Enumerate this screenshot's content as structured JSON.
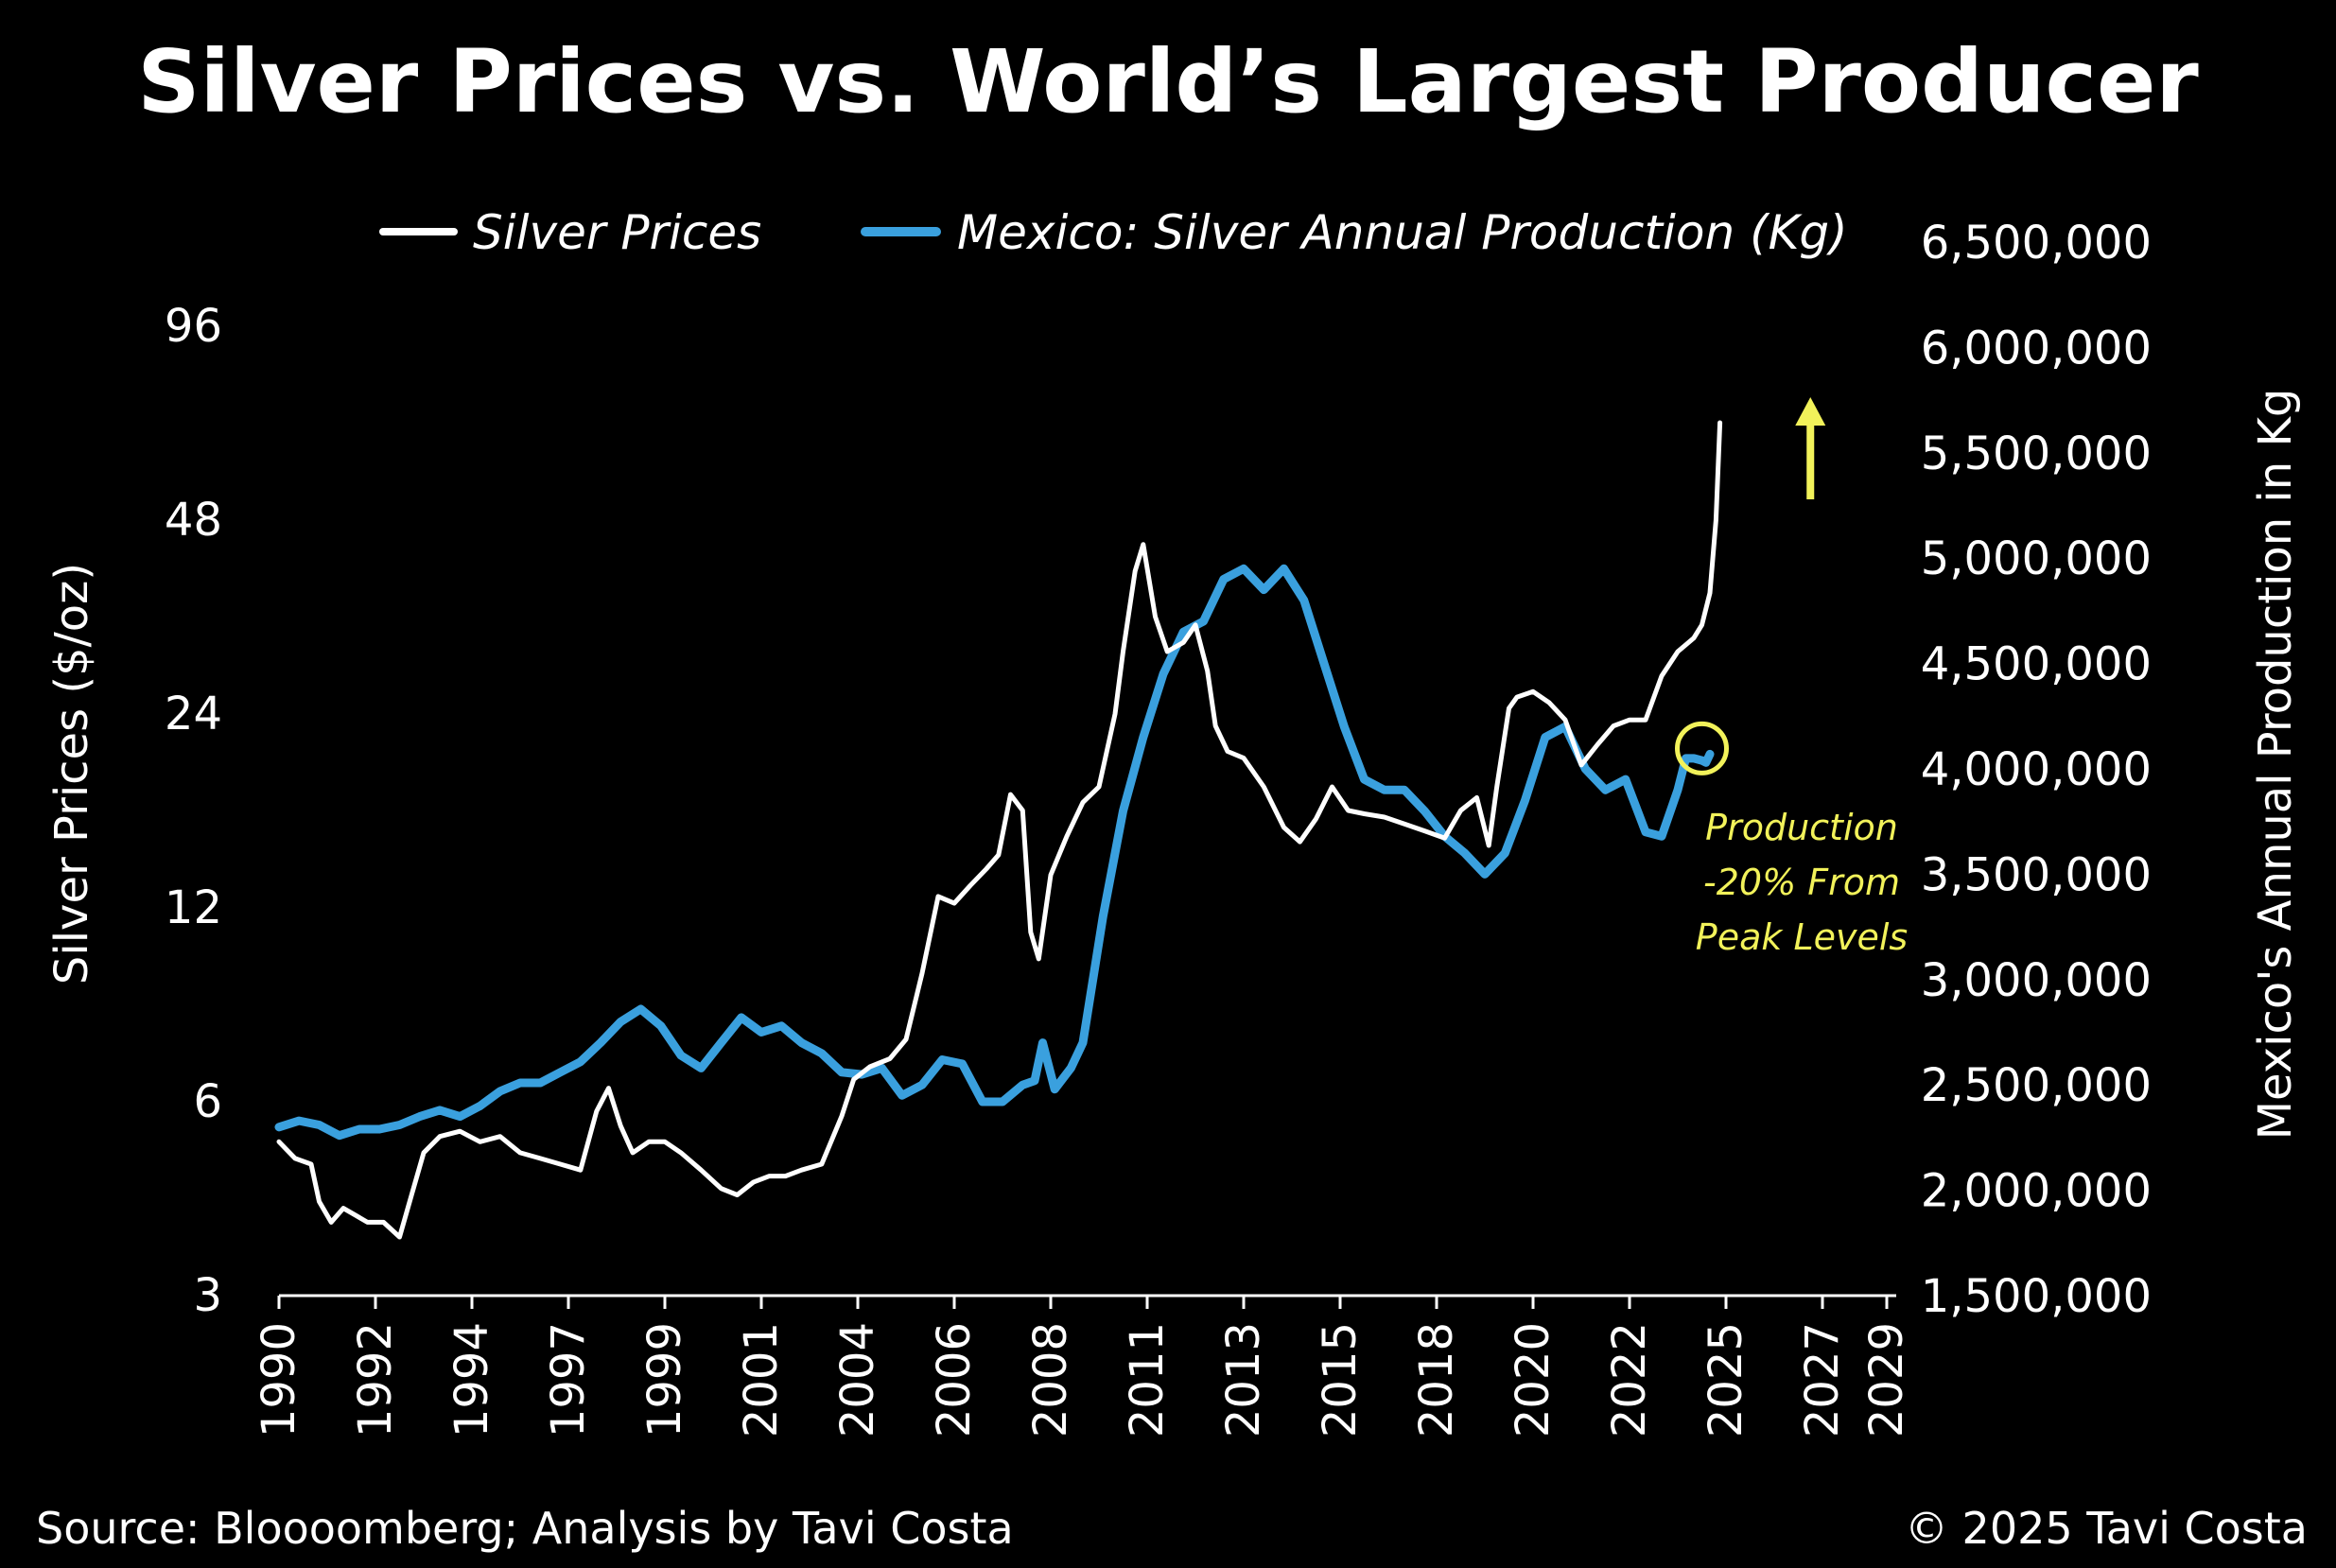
{
  "chart_data": {
    "type": "line",
    "title": "Silver Prices vs. World’s Largest Producer",
    "legend_position": "top",
    "grid": false,
    "x_axis": {
      "range": [
        1990,
        2030
      ],
      "tick_labels": [
        "1990",
        "1992",
        "1994",
        "1997",
        "1999",
        "2001",
        "2004",
        "2006",
        "2008",
        "2011",
        "2013",
        "2015",
        "2018",
        "2020",
        "2022",
        "2025",
        "2027",
        "2029"
      ],
      "tick_values": [
        1990,
        1992.4,
        1994.8,
        1997.2,
        1999.6,
        2002,
        2004.4,
        2006.8,
        2009.2,
        2011.6,
        2014,
        2016.4,
        2018.8,
        2021.2,
        2023.6,
        2026,
        2028.4,
        2030
      ]
    },
    "y_left": {
      "label": "Silver Prices ($/oz)",
      "scale": "log2",
      "range": [
        3,
        96
      ],
      "ticks": [
        96,
        48,
        24,
        12,
        6,
        3
      ]
    },
    "y_right": {
      "label": "Mexico's Annual Production in Kg",
      "scale": "linear",
      "range": [
        1500000,
        6500000
      ],
      "ticks": [
        {
          "v": 6500000,
          "label": "6,500,000"
        },
        {
          "v": 6000000,
          "label": "6,000,000"
        },
        {
          "v": 5500000,
          "label": "5,500,000"
        },
        {
          "v": 5000000,
          "label": "5,000,000"
        },
        {
          "v": 4500000,
          "label": "4,500,000"
        },
        {
          "v": 4000000,
          "label": "4,000,000"
        },
        {
          "v": 3500000,
          "label": "3,500,000"
        },
        {
          "v": 3000000,
          "label": "3,000,000"
        },
        {
          "v": 2500000,
          "label": "2,500,000"
        },
        {
          "v": 2000000,
          "label": "2,000,000"
        },
        {
          "v": 1500000,
          "label": "1,500,000"
        }
      ]
    },
    "series": [
      {
        "name": "Silver Prices",
        "axis": "left",
        "color": "#ffffff",
        "x": [
          1990,
          1990.4,
          1990.8,
          1991.0,
          1991.3,
          1991.6,
          1991.9,
          1992.2,
          1992.6,
          1993.0,
          1993.3,
          1993.6,
          1994.0,
          1994.5,
          1995.0,
          1995.5,
          1996.0,
          1996.5,
          1997.0,
          1997.5,
          1997.9,
          1998.2,
          1998.5,
          1998.8,
          1999.2,
          1999.6,
          2000.0,
          2000.5,
          2001.0,
          2001.4,
          2001.8,
          2002.2,
          2002.6,
          2003.0,
          2003.5,
          2004.0,
          2004.3,
          2004.7,
          2005.2,
          2005.6,
          2006.0,
          2006.4,
          2006.8,
          2007.2,
          2007.6,
          2007.9,
          2008.2,
          2008.5,
          2008.7,
          2008.9,
          2009.2,
          2009.6,
          2010.0,
          2010.4,
          2010.8,
          2011.0,
          2011.3,
          2011.5,
          2011.8,
          2012.1,
          2012.5,
          2012.8,
          2013.1,
          2013.3,
          2013.6,
          2014.0,
          2014.5,
          2015.0,
          2015.4,
          2015.8,
          2016.2,
          2016.6,
          2017.0,
          2017.5,
          2018.0,
          2018.5,
          2019.0,
          2019.4,
          2019.8,
          2020.1,
          2020.3,
          2020.6,
          2020.8,
          2021.2,
          2021.6,
          2022.0,
          2022.4,
          2022.8,
          2023.2,
          2023.6,
          2024.0,
          2024.4,
          2024.8,
          2025.2,
          2025.4,
          2025.6,
          2025.75,
          2025.85
        ],
        "values": [
          5.2,
          4.9,
          4.8,
          4.2,
          3.9,
          4.1,
          4.0,
          3.9,
          3.9,
          3.7,
          4.3,
          5.0,
          5.3,
          5.4,
          5.2,
          5.3,
          5.0,
          4.9,
          4.8,
          4.7,
          5.8,
          6.3,
          5.5,
          5.0,
          5.2,
          5.2,
          5.0,
          4.7,
          4.4,
          4.3,
          4.5,
          4.6,
          4.6,
          4.7,
          4.8,
          5.7,
          6.5,
          6.8,
          7.0,
          7.5,
          9.5,
          12.5,
          12.2,
          13.0,
          13.8,
          14.5,
          18.0,
          17.0,
          11.0,
          10.0,
          13.5,
          15.5,
          17.5,
          18.5,
          24.0,
          30.0,
          40.0,
          44.0,
          34.0,
          30.0,
          31.0,
          33.0,
          28.0,
          23.0,
          21.0,
          20.5,
          18.5,
          16.0,
          15.2,
          16.5,
          18.5,
          17.0,
          16.8,
          16.6,
          16.2,
          15.8,
          15.4,
          17.0,
          17.8,
          15.0,
          18.5,
          24.5,
          25.5,
          26.0,
          25.0,
          23.5,
          20.0,
          21.5,
          23.0,
          23.5,
          23.5,
          27.5,
          30.0,
          31.5,
          33.0,
          37.0,
          48.0,
          68.0
        ]
      },
      {
        "name": "Mexico: Silver Annual Production (Kg)",
        "axis": "right",
        "color": "#3aa0de",
        "x": [
          1990,
          1990.5,
          1991.0,
          1991.5,
          1992.0,
          1992.5,
          1993.0,
          1993.5,
          1994.0,
          1994.5,
          1995.0,
          1995.5,
          1996.0,
          1996.5,
          1997.0,
          1997.5,
          1998.0,
          1998.5,
          1999.0,
          1999.5,
          2000.0,
          2000.5,
          2001.0,
          2001.5,
          2002.0,
          2002.5,
          2003.0,
          2003.5,
          2004.0,
          2004.5,
          2005.0,
          2005.5,
          2006.0,
          2006.5,
          2007.0,
          2007.5,
          2008.0,
          2008.5,
          2008.8,
          2009.0,
          2009.3,
          2009.7,
          2010.0,
          2010.5,
          2011.0,
          2011.5,
          2012.0,
          2012.5,
          2013.0,
          2013.5,
          2014.0,
          2014.5,
          2015.0,
          2015.5,
          2016.0,
          2016.5,
          2017.0,
          2017.5,
          2018.0,
          2018.5,
          2019.0,
          2019.5,
          2020.0,
          2020.5,
          2021.0,
          2021.5,
          2022.0,
          2022.5,
          2023.0,
          2023.5,
          2024.0,
          2024.4,
          2024.8,
          2025.0,
          2025.2,
          2025.4,
          2025.5,
          2025.6
        ],
        "values": [
          2300000,
          2330000,
          2310000,
          2260000,
          2290000,
          2290000,
          2310000,
          2350000,
          2380000,
          2350000,
          2400000,
          2470000,
          2510000,
          2510000,
          2560000,
          2610000,
          2700000,
          2800000,
          2860000,
          2780000,
          2640000,
          2580000,
          2700000,
          2820000,
          2750000,
          2780000,
          2700000,
          2650000,
          2560000,
          2550000,
          2580000,
          2450000,
          2500000,
          2620000,
          2600000,
          2420000,
          2420000,
          2500000,
          2520000,
          2700000,
          2480000,
          2580000,
          2700000,
          3300000,
          3800000,
          4150000,
          4450000,
          4650000,
          4700000,
          4900000,
          4950000,
          4850000,
          4950000,
          4800000,
          4500000,
          4200000,
          3950000,
          3900000,
          3900000,
          3800000,
          3680000,
          3600000,
          3500000,
          3600000,
          3850000,
          4150000,
          4200000,
          4000000,
          3900000,
          3950000,
          3700000,
          3680000,
          3900000,
          4050000,
          4050000,
          4040000,
          4030000,
          4070000
        ]
      }
    ],
    "annotations": [
      {
        "text": "Production",
        "type": "callout"
      },
      {
        "text": "-20% From",
        "type": "callout"
      },
      {
        "text": "Peak Levels",
        "type": "callout"
      }
    ],
    "annotation_color": "#f2f25a",
    "annotation_marker": {
      "shape": "circle",
      "x": 2025.4,
      "y": 4070000,
      "axis": "right"
    },
    "annotation_arrow": {
      "direction": "up",
      "x": 2028.1
    }
  },
  "footer": {
    "source": "Source: Bloooomberg; Analysis by Tavi Costa",
    "copyright": "© 2025 Tavi Costa"
  },
  "colors": {
    "background": "#000000",
    "text": "#ffffff",
    "accent_blue": "#3aa0de",
    "annotation": "#f2f25a"
  }
}
